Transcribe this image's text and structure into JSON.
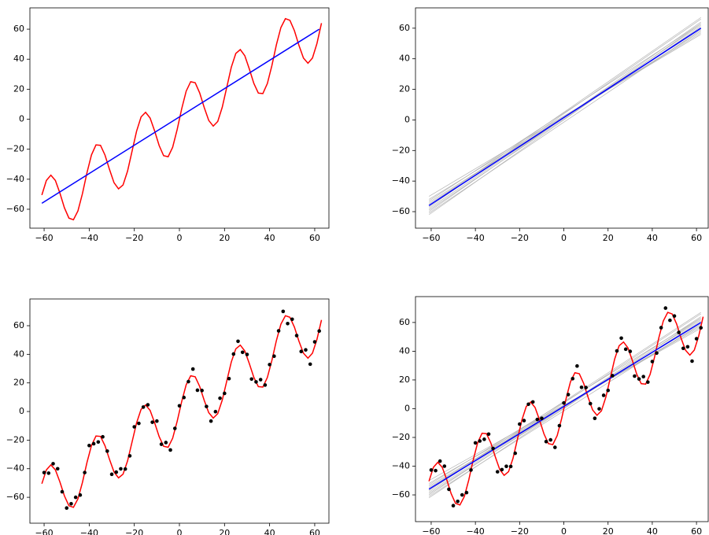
{
  "chart_data": [
    {
      "type": "line",
      "xlim": [
        -66.3,
        66.3
      ],
      "ylim": [
        -72.6,
        74.2
      ],
      "xticks": [
        {
          "value": -60,
          "label": "−60"
        },
        {
          "value": -40,
          "label": "−40"
        },
        {
          "value": -20,
          "label": "−20"
        },
        0,
        20,
        40,
        60
      ],
      "yticks": [
        {
          "value": -60,
          "label": "−60"
        },
        {
          "value": -40,
          "label": "−40"
        },
        {
          "value": -20,
          "label": "−20"
        },
        0,
        20,
        40,
        60
      ],
      "series": [
        {
          "color": "#ff0000",
          "style": "line",
          "x": [
            -61,
            -59,
            -57,
            -55,
            -53,
            -51,
            -49,
            -47,
            -45,
            -43,
            -41,
            -39,
            -37,
            -35,
            -33,
            -31,
            -29,
            -27,
            -25,
            -23,
            -21,
            -19,
            -17,
            -15,
            -13,
            -11,
            -9,
            -7,
            -5,
            -3,
            -1,
            1,
            3,
            5,
            7,
            9,
            11,
            13,
            15,
            17,
            19,
            21,
            23,
            25,
            27,
            29,
            31,
            33,
            35,
            37,
            39,
            41,
            43,
            45,
            47,
            49,
            51,
            53,
            55,
            57,
            59,
            61,
            63
          ],
          "values": [
            -50.5,
            -40.8,
            -37.3,
            -40.8,
            -49.2,
            -59,
            -65.9,
            -67,
            -61.1,
            -49.6,
            -35.7,
            -23.8,
            -17.1,
            -17.4,
            -23.9,
            -33.5,
            -42.3,
            -46.4,
            -43.8,
            -34.6,
            -21.3,
            -8,
            1.5,
            4.6,
            0.8,
            -7.8,
            -17.5,
            -24.3,
            -25,
            -18.7,
            -6.9,
            6.9,
            18.7,
            25,
            24.3,
            17.5,
            7.8,
            -0.8,
            -4.6,
            -1.5,
            8,
            21.3,
            34.6,
            43.8,
            46.4,
            42.3,
            33.5,
            23.9,
            17.4,
            17.1,
            23.8,
            35.7,
            49.6,
            61.1,
            67,
            65.9,
            59,
            49.2,
            40.8,
            37.3,
            40.8,
            50.5,
            64
          ]
        },
        {
          "color": "#0000ff",
          "style": "line",
          "x": [
            -61,
            62
          ],
          "values": [
            -56,
            60
          ]
        }
      ]
    },
    {
      "type": "line",
      "xlim": [
        -67.1,
        65.3
      ],
      "ylim": [
        -70.8,
        73.3
      ],
      "xticks": [
        {
          "value": -60,
          "label": "−60"
        },
        {
          "value": -40,
          "label": "−40"
        },
        {
          "value": -20,
          "label": "−20"
        },
        0,
        20,
        40,
        60
      ],
      "yticks": [
        {
          "value": -60,
          "label": "−60"
        },
        {
          "value": -40,
          "label": "−40"
        },
        {
          "value": -20,
          "label": "−20"
        },
        0,
        20,
        40,
        60
      ],
      "series": [
        {
          "color": "#b4b4b4",
          "style": "line",
          "x": [
            -61,
            62
          ],
          "values": [
            -58,
            62
          ]
        },
        {
          "color": "#b4b4b4",
          "style": "line",
          "x": [
            -61,
            62
          ],
          "values": [
            -54,
            58
          ]
        },
        {
          "color": "#b4b4b4",
          "style": "line",
          "x": [
            -61,
            62
          ],
          "values": [
            -60,
            64
          ]
        },
        {
          "color": "#b4b4b4",
          "style": "line",
          "x": [
            -61,
            62
          ],
          "values": [
            -52,
            57
          ]
        },
        {
          "color": "#b4b4b4",
          "style": "line",
          "x": [
            -61,
            62
          ],
          "values": [
            -57,
            66
          ]
        },
        {
          "color": "#b4b4b4",
          "style": "line",
          "x": [
            -61,
            62
          ],
          "values": [
            -55,
            60
          ]
        },
        {
          "color": "#b4b4b4",
          "style": "line",
          "x": [
            -61,
            62
          ],
          "values": [
            -61,
            59
          ]
        },
        {
          "color": "#b4b4b4",
          "style": "line",
          "x": [
            -61,
            62
          ],
          "values": [
            -53,
            63
          ]
        },
        {
          "color": "#b4b4b4",
          "style": "line",
          "x": [
            -61,
            62
          ],
          "values": [
            -59,
            61
          ]
        },
        {
          "color": "#b4b4b4",
          "style": "line",
          "x": [
            -61,
            62
          ],
          "values": [
            -56,
            67
          ]
        },
        {
          "color": "#b4b4b4",
          "style": "line",
          "x": [
            -61,
            62
          ],
          "values": [
            -50,
            56
          ]
        },
        {
          "color": "#b4b4b4",
          "style": "line",
          "x": [
            -61,
            62
          ],
          "values": [
            -62,
            63
          ]
        },
        {
          "color": "#0000ff",
          "style": "line",
          "x": [
            -61,
            62
          ],
          "values": [
            -56,
            60
          ]
        }
      ]
    },
    {
      "type": "line",
      "xlim": [
        -66.3,
        66.3
      ],
      "ylim": [
        -78.1,
        78.7
      ],
      "xticks": [
        {
          "value": -60,
          "label": "−60"
        },
        {
          "value": -40,
          "label": "−40"
        },
        {
          "value": -20,
          "label": "−20"
        },
        0,
        20,
        40,
        60
      ],
      "yticks": [
        {
          "value": -60,
          "label": "−60"
        },
        {
          "value": -40,
          "label": "−40"
        },
        {
          "value": -20,
          "label": "−20"
        },
        0,
        20,
        40,
        60
      ],
      "series": [
        {
          "color": "#ff0000",
          "style": "line",
          "x": [
            -61,
            -59,
            -57,
            -55,
            -53,
            -51,
            -49,
            -47,
            -45,
            -43,
            -41,
            -39,
            -37,
            -35,
            -33,
            -31,
            -29,
            -27,
            -25,
            -23,
            -21,
            -19,
            -17,
            -15,
            -13,
            -11,
            -9,
            -7,
            -5,
            -3,
            -1,
            1,
            3,
            5,
            7,
            9,
            11,
            13,
            15,
            17,
            19,
            21,
            23,
            25,
            27,
            29,
            31,
            33,
            35,
            37,
            39,
            41,
            43,
            45,
            47,
            49,
            51,
            53,
            55,
            57,
            59,
            61,
            63
          ],
          "values": [
            -50.5,
            -40.8,
            -37.3,
            -40.8,
            -49.2,
            -59,
            -65.9,
            -67,
            -61.1,
            -49.6,
            -35.7,
            -23.8,
            -17.1,
            -17.4,
            -23.9,
            -33.5,
            -42.3,
            -46.4,
            -43.8,
            -34.6,
            -21.3,
            -8,
            1.5,
            4.6,
            0.8,
            -7.8,
            -17.5,
            -24.3,
            -25,
            -18.7,
            -6.9,
            6.9,
            18.7,
            25,
            24.3,
            17.5,
            7.8,
            -0.8,
            -4.6,
            -1.5,
            8,
            21.3,
            34.6,
            43.8,
            46.4,
            42.3,
            33.5,
            23.9,
            17.4,
            17.1,
            23.8,
            35.7,
            49.6,
            61.1,
            67,
            65.9,
            59,
            49.2,
            40.8,
            37.3,
            40.8,
            50.5,
            64
          ]
        },
        {
          "color": "#000000",
          "style": "points",
          "x": [
            -60,
            -58,
            -56,
            -54,
            -52,
            -50,
            -48,
            -46,
            -44,
            -42,
            -40,
            -38,
            -36,
            -34,
            -32,
            -30,
            -28,
            -26,
            -24,
            -22,
            -20,
            -18,
            -16,
            -14,
            -12,
            -10,
            -8,
            -6,
            -4,
            -2,
            0,
            2,
            4,
            6,
            8,
            10,
            12,
            14,
            16,
            18,
            20,
            22,
            24,
            26,
            28,
            30,
            32,
            34,
            36,
            38,
            40,
            42,
            44,
            46,
            48,
            50,
            52,
            54,
            56,
            58,
            60,
            62
          ],
          "values": [
            -42.7,
            -43.1,
            -36.5,
            -40,
            -56.1,
            -67.5,
            -64.5,
            -60,
            -58.4,
            -42.7,
            -23.8,
            -22.5,
            -21.3,
            -17.7,
            -27.7,
            -43.9,
            -42.4,
            -40.1,
            -40.2,
            -31,
            -10.7,
            -8.3,
            3.1,
            4.7,
            -7.5,
            -6.7,
            -22.9,
            -21.7,
            -26.9,
            -11.8,
            4,
            9.8,
            20.9,
            29.7,
            14.9,
            14.7,
            3.5,
            -6.7,
            -0.1,
            9.3,
            12.7,
            23,
            40.2,
            49.1,
            41.4,
            39.9,
            22.7,
            20.7,
            22.3,
            18.5,
            32.8,
            38.7,
            56.4,
            70,
            61.5,
            64.5,
            53.1,
            42,
            43.1,
            33.1,
            48.7,
            56.3
          ]
        }
      ]
    },
    {
      "type": "line",
      "xlim": [
        -67.1,
        65.3
      ],
      "ylim": [
        -78.6,
        78
      ],
      "xticks": [
        {
          "value": -60,
          "label": "−60"
        },
        {
          "value": -40,
          "label": "−40"
        },
        {
          "value": -20,
          "label": "−20"
        },
        0,
        20,
        40,
        60
      ],
      "yticks": [
        {
          "value": -60,
          "label": "−60"
        },
        {
          "value": -40,
          "label": "−40"
        },
        {
          "value": -20,
          "label": "−20"
        },
        0,
        20,
        40,
        60
      ],
      "series": [
        {
          "color": "#b4b4b4",
          "style": "line",
          "x": [
            -61,
            62
          ],
          "values": [
            -58,
            62
          ]
        },
        {
          "color": "#b4b4b4",
          "style": "line",
          "x": [
            -61,
            62
          ],
          "values": [
            -54,
            58
          ]
        },
        {
          "color": "#b4b4b4",
          "style": "line",
          "x": [
            -61,
            62
          ],
          "values": [
            -60,
            64
          ]
        },
        {
          "color": "#b4b4b4",
          "style": "line",
          "x": [
            -61,
            62
          ],
          "values": [
            -52,
            57
          ]
        },
        {
          "color": "#b4b4b4",
          "style": "line",
          "x": [
            -61,
            62
          ],
          "values": [
            -57,
            66
          ]
        },
        {
          "color": "#b4b4b4",
          "style": "line",
          "x": [
            -61,
            62
          ],
          "values": [
            -55,
            60
          ]
        },
        {
          "color": "#b4b4b4",
          "style": "line",
          "x": [
            -61,
            62
          ],
          "values": [
            -61,
            59
          ]
        },
        {
          "color": "#b4b4b4",
          "style": "line",
          "x": [
            -61,
            62
          ],
          "values": [
            -53,
            63
          ]
        },
        {
          "color": "#b4b4b4",
          "style": "line",
          "x": [
            -61,
            62
          ],
          "values": [
            -59,
            61
          ]
        },
        {
          "color": "#b4b4b4",
          "style": "line",
          "x": [
            -61,
            62
          ],
          "values": [
            -56,
            67
          ]
        },
        {
          "color": "#b4b4b4",
          "style": "line",
          "x": [
            -61,
            62
          ],
          "values": [
            -50,
            56
          ]
        },
        {
          "color": "#b4b4b4",
          "style": "line",
          "x": [
            -61,
            62
          ],
          "values": [
            -62,
            63
          ]
        },
        {
          "color": "#ff0000",
          "style": "line",
          "x": [
            -61,
            -59,
            -57,
            -55,
            -53,
            -51,
            -49,
            -47,
            -45,
            -43,
            -41,
            -39,
            -37,
            -35,
            -33,
            -31,
            -29,
            -27,
            -25,
            -23,
            -21,
            -19,
            -17,
            -15,
            -13,
            -11,
            -9,
            -7,
            -5,
            -3,
            -1,
            1,
            3,
            5,
            7,
            9,
            11,
            13,
            15,
            17,
            19,
            21,
            23,
            25,
            27,
            29,
            31,
            33,
            35,
            37,
            39,
            41,
            43,
            45,
            47,
            49,
            51,
            53,
            55,
            57,
            59,
            61,
            63
          ],
          "values": [
            -50.5,
            -40.8,
            -37.3,
            -40.8,
            -49.2,
            -59,
            -65.9,
            -67,
            -61.1,
            -49.6,
            -35.7,
            -23.8,
            -17.1,
            -17.4,
            -23.9,
            -33.5,
            -42.3,
            -46.4,
            -43.8,
            -34.6,
            -21.3,
            -8,
            1.5,
            4.6,
            0.8,
            -7.8,
            -17.5,
            -24.3,
            -25,
            -18.7,
            -6.9,
            6.9,
            18.7,
            25,
            24.3,
            17.5,
            7.8,
            -0.8,
            -4.6,
            -1.5,
            8,
            21.3,
            34.6,
            43.8,
            46.4,
            42.3,
            33.5,
            23.9,
            17.4,
            17.1,
            23.8,
            35.7,
            49.6,
            61.1,
            67,
            65.9,
            59,
            49.2,
            40.8,
            37.3,
            40.8,
            50.5,
            64
          ]
        },
        {
          "color": "#0000ff",
          "style": "line",
          "x": [
            -61,
            62
          ],
          "values": [
            -56,
            60
          ]
        },
        {
          "color": "#000000",
          "style": "points",
          "x": [
            -60,
            -58,
            -56,
            -54,
            -52,
            -50,
            -48,
            -46,
            -44,
            -42,
            -40,
            -38,
            -36,
            -34,
            -32,
            -30,
            -28,
            -26,
            -24,
            -22,
            -20,
            -18,
            -16,
            -14,
            -12,
            -10,
            -8,
            -6,
            -4,
            -2,
            0,
            2,
            4,
            6,
            8,
            10,
            12,
            14,
            16,
            18,
            20,
            22,
            24,
            26,
            28,
            30,
            32,
            34,
            36,
            38,
            40,
            42,
            44,
            46,
            48,
            50,
            52,
            54,
            56,
            58,
            60,
            62
          ],
          "values": [
            -42.7,
            -43.1,
            -36.5,
            -40,
            -56.1,
            -67.5,
            -64.5,
            -60,
            -58.4,
            -42.7,
            -23.8,
            -22.5,
            -21.3,
            -17.7,
            -27.7,
            -43.9,
            -42.4,
            -40.1,
            -40.2,
            -31,
            -10.7,
            -8.3,
            3.1,
            4.7,
            -7.5,
            -6.7,
            -22.9,
            -21.7,
            -26.9,
            -11.8,
            4,
            9.8,
            20.9,
            29.7,
            14.9,
            14.7,
            3.5,
            -6.7,
            -0.1,
            9.3,
            12.7,
            23,
            40.2,
            49.1,
            41.4,
            39.9,
            22.7,
            20.7,
            22.3,
            18.5,
            32.8,
            38.7,
            56.4,
            70,
            61.5,
            64.5,
            53.1,
            42,
            43.1,
            33.1,
            48.7,
            56.3
          ]
        }
      ]
    }
  ]
}
